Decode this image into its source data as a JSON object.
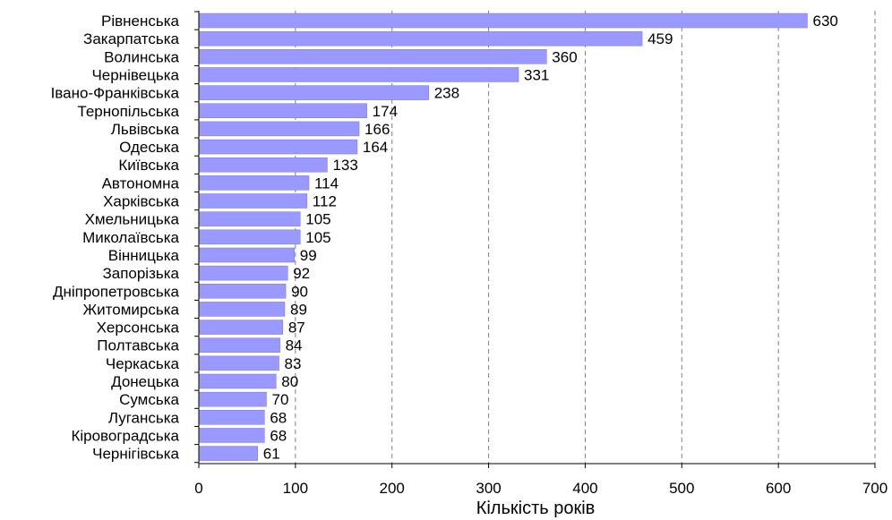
{
  "chart_data": {
    "type": "bar",
    "orientation": "horizontal",
    "categories": [
      "Рівненська",
      "Закарпатська",
      "Волинська",
      "Чернівецька",
      "Івано-Франківська",
      "Тернопільська",
      "Львівська",
      "Одеська",
      "Київська",
      "Автономна",
      "Харківська",
      "Хмельницька",
      "Миколаївська",
      "Вінницька",
      "Запорізька",
      "Дніпропетровська",
      "Житомирська",
      "Херсонська",
      "Полтавська",
      "Черкаська",
      "Донецька",
      "Сумська",
      "Луганська",
      "Кіровоградська",
      "Чернігівська"
    ],
    "values": [
      630,
      459,
      360,
      331,
      238,
      174,
      166,
      164,
      133,
      114,
      112,
      105,
      105,
      99,
      92,
      90,
      89,
      87,
      84,
      83,
      80,
      70,
      68,
      68,
      61
    ],
    "xlabel": "Кількість років",
    "ylabel": "",
    "xlim": [
      0,
      700
    ],
    "xticks": [
      0,
      100,
      200,
      300,
      400,
      500,
      600,
      700
    ],
    "grid": "vertical-dashed",
    "legend": "none",
    "bar_color": "#9999ff",
    "bar_edge_color": "#7777dd"
  }
}
